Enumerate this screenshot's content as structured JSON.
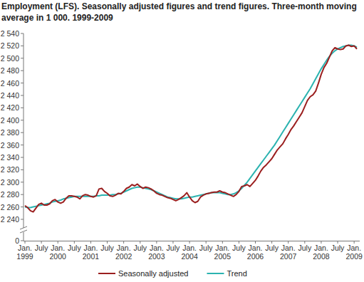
{
  "chart_data": {
    "type": "line",
    "title": "Employment (LFS). Seasonally adjusted figures and trend figures. Three-month moving average in 1 000. 1999-2009",
    "categories": [
      "Jan. 1999",
      null,
      null,
      null,
      null,
      null,
      "July",
      null,
      null,
      null,
      null,
      null,
      "Jan. 2000",
      null,
      null,
      null,
      null,
      null,
      "July",
      null,
      null,
      null,
      null,
      null,
      "Jan. 2001",
      null,
      null,
      null,
      null,
      null,
      "July",
      null,
      null,
      null,
      null,
      null,
      "Jan. 2002",
      null,
      null,
      null,
      null,
      null,
      "July",
      null,
      null,
      null,
      null,
      null,
      "Jan. 2003",
      null,
      null,
      null,
      null,
      null,
      "July",
      null,
      null,
      null,
      null,
      null,
      "Jan. 2004",
      null,
      null,
      null,
      null,
      null,
      "July",
      null,
      null,
      null,
      null,
      null,
      "Jan. 2005",
      null,
      null,
      null,
      null,
      null,
      "July",
      null,
      null,
      null,
      null,
      null,
      "Jan. 2006",
      null,
      null,
      null,
      null,
      null,
      "July",
      null,
      null,
      null,
      null,
      null,
      "Jan. 2007",
      null,
      null,
      null,
      null,
      null,
      "July",
      null,
      null,
      null,
      null,
      null,
      "Jan. 2008",
      null,
      null,
      null,
      null,
      null,
      "July",
      null,
      null,
      null,
      null,
      null,
      "Jan. 2009",
      null
    ],
    "series": [
      {
        "name": "Seasonally adjusted",
        "color": "#9b1f1f",
        "values": [
          2262,
          2259,
          2254,
          2252,
          2258,
          2264,
          2266,
          2263,
          2263,
          2265,
          2270,
          2272,
          2268,
          2266,
          2268,
          2274,
          2278,
          2278,
          2277,
          2276,
          2273,
          2278,
          2280,
          2279,
          2277,
          2276,
          2278,
          2289,
          2290,
          2285,
          2282,
          2278,
          2277,
          2279,
          2282,
          2281,
          2285,
          2290,
          2292,
          2296,
          2294,
          2297,
          2293,
          2290,
          2292,
          2291,
          2289,
          2286,
          2282,
          2280,
          2279,
          2277,
          2275,
          2274,
          2272,
          2270,
          2272,
          2275,
          2278,
          2283,
          2276,
          2270,
          2267,
          2269,
          2276,
          2279,
          2281,
          2282,
          2283,
          2284,
          2284,
          2286,
          2284,
          2283,
          2281,
          2279,
          2277,
          2280,
          2285,
          2293,
          2294,
          2296,
          2293,
          2298,
          2303,
          2310,
          2318,
          2324,
          2328,
          2333,
          2338,
          2345,
          2352,
          2357,
          2362,
          2370,
          2377,
          2385,
          2391,
          2398,
          2405,
          2412,
          2422,
          2432,
          2438,
          2441,
          2447,
          2460,
          2474,
          2485,
          2492,
          2502,
          2512,
          2517,
          2515,
          2514,
          2515,
          2520,
          2521,
          2519,
          2520,
          2515
        ]
      },
      {
        "name": "Trend",
        "color": "#2bb3b0",
        "values": [
          2260,
          2259,
          2259,
          2260,
          2261,
          2262,
          2263,
          2264,
          2265,
          2266,
          2268,
          2269,
          2270,
          2271,
          2273,
          2274,
          2275,
          2276,
          2277,
          2277,
          2277,
          2277,
          2277,
          2277,
          2277,
          2277,
          2278,
          2278,
          2279,
          2279,
          2279,
          2279,
          2280,
          2280,
          2281,
          2282,
          2284,
          2286,
          2288,
          2290,
          2291,
          2292,
          2292,
          2291,
          2290,
          2289,
          2288,
          2286,
          2284,
          2282,
          2280,
          2278,
          2276,
          2275,
          2274,
          2273,
          2273,
          2273,
          2274,
          2275,
          2276,
          2276,
          2277,
          2278,
          2279,
          2280,
          2281,
          2282,
          2283,
          2283,
          2283,
          2283,
          2282,
          2281,
          2280,
          2280,
          2281,
          2283,
          2286,
          2290,
          2295,
          2300,
          2306,
          2312,
          2318,
          2324,
          2330,
          2336,
          2342,
          2348,
          2354,
          2360,
          2367,
          2374,
          2381,
          2388,
          2395,
          2402,
          2409,
          2416,
          2423,
          2430,
          2437,
          2444,
          2451,
          2459,
          2467,
          2475,
          2483,
          2490,
          2497,
          2503,
          2508,
          2512,
          2515,
          2517,
          2519,
          2520,
          2521,
          2521,
          2520,
          2518
        ]
      }
    ],
    "ylim": [
      0,
      2540
    ],
    "yticks": [
      0,
      {
        "value": 2240,
        "label": "2 240"
      },
      {
        "value": 2260,
        "label": "2 260"
      },
      {
        "value": 2280,
        "label": "2 280"
      },
      {
        "value": 2300,
        "label": "2 300"
      },
      {
        "value": 2320,
        "label": "2 320"
      },
      {
        "value": 2340,
        "label": "2 340"
      },
      {
        "value": 2360,
        "label": "2 360"
      },
      {
        "value": 2380,
        "label": "2 380"
      },
      {
        "value": 2400,
        "label": "2 400"
      },
      {
        "value": 2420,
        "label": "2 420"
      },
      {
        "value": 2440,
        "label": "2 440"
      },
      {
        "value": 2460,
        "label": "2 460"
      },
      {
        "value": 2480,
        "label": "2 480"
      },
      {
        "value": 2500,
        "label": "2 500"
      },
      {
        "value": 2520,
        "label": "2 520"
      },
      {
        "value": 2540,
        "label": "2 540"
      }
    ],
    "grid": false,
    "legend": "bottom"
  }
}
